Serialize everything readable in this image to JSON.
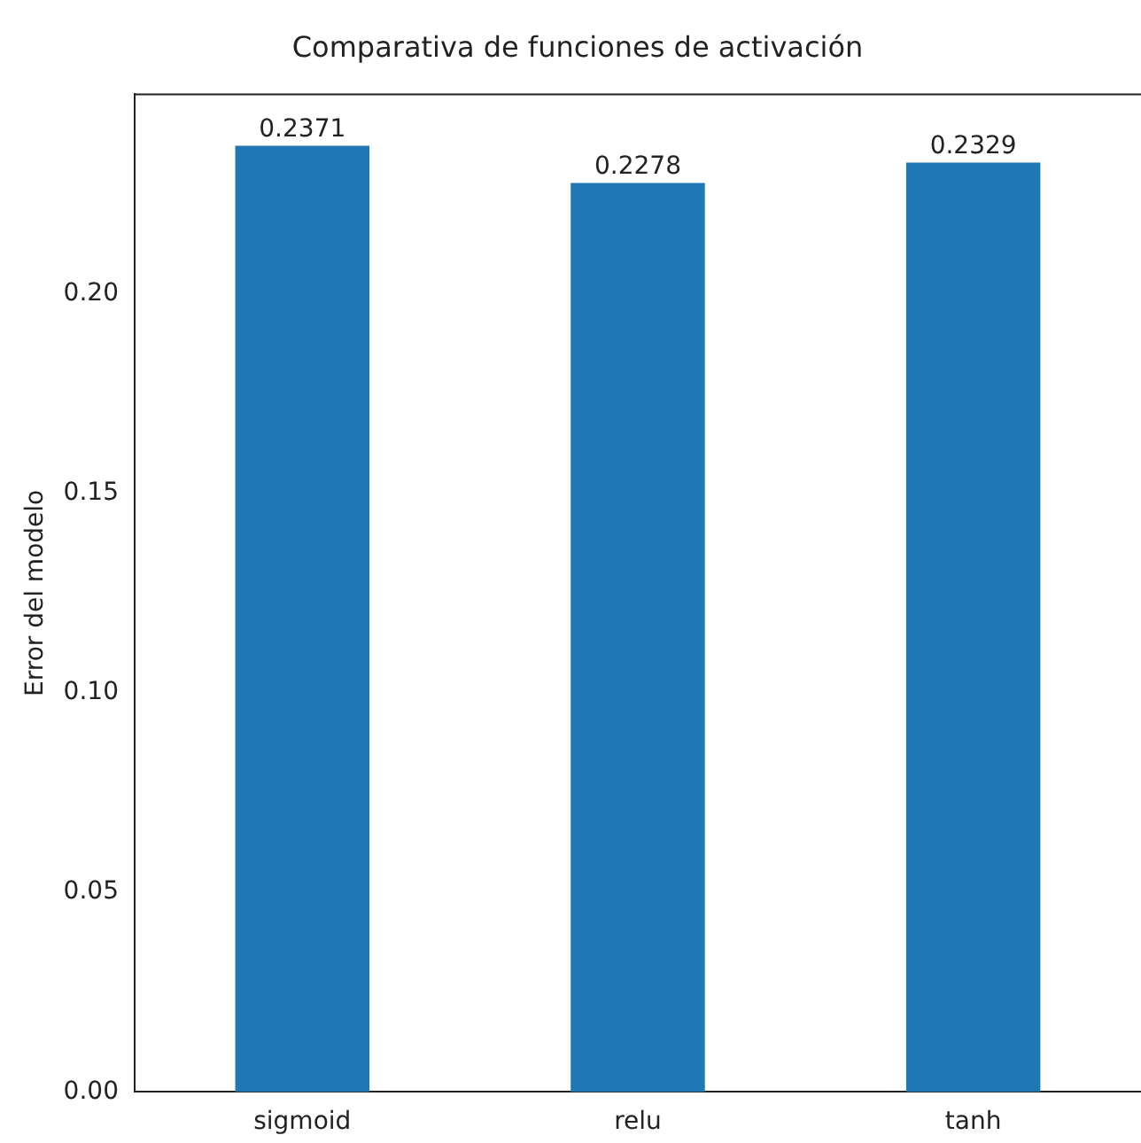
{
  "chart_data": {
    "type": "bar",
    "title": "Comparativa de funciones de activación",
    "ylabel": "Error del modelo",
    "categories": [
      "sigmoid",
      "relu",
      "tanh"
    ],
    "values": [
      0.2371,
      0.2278,
      0.2329
    ],
    "color": "#1f77b4",
    "ylim": [
      0,
      0.25
    ],
    "yticks": [
      {
        "value": 0,
        "label": "0.00"
      },
      {
        "value": 0.05,
        "label": "0.05"
      },
      {
        "value": 0.1,
        "label": "0.10"
      },
      {
        "value": 0.15,
        "label": "0.15"
      },
      {
        "value": 0.2,
        "label": "0.20"
      }
    ],
    "data_labels": true,
    "grid": false,
    "legend": false
  }
}
